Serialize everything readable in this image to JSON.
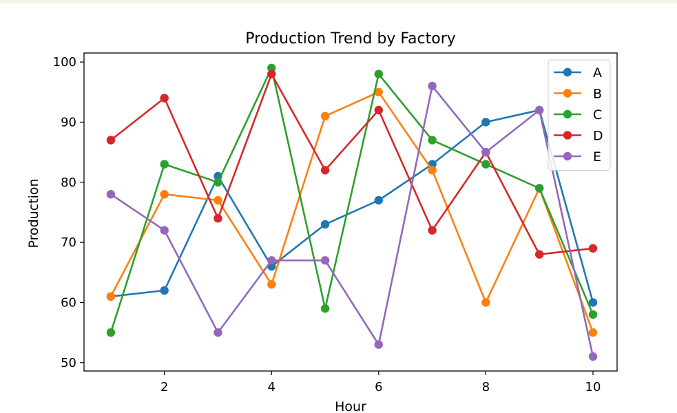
{
  "chart_data": {
    "type": "line",
    "title": "Production Trend by Factory",
    "xlabel": "Hour",
    "ylabel": "Production",
    "x": [
      1,
      2,
      3,
      4,
      5,
      6,
      7,
      8,
      9,
      10
    ],
    "xlim": [
      0.5,
      10.45
    ],
    "ylim": [
      48.6,
      101.5
    ],
    "xticks": [
      2,
      4,
      6,
      8,
      10
    ],
    "yticks": [
      50,
      60,
      70,
      80,
      90,
      100
    ],
    "grid": false,
    "legend_position": "top-right",
    "series": [
      {
        "name": "A",
        "color": "#1f77b4",
        "values": [
          61,
          62,
          81,
          66,
          73,
          77,
          83,
          90,
          92,
          60
        ]
      },
      {
        "name": "B",
        "color": "#ff7f0e",
        "values": [
          61,
          78,
          77,
          63,
          91,
          95,
          82,
          60,
          79,
          55
        ]
      },
      {
        "name": "C",
        "color": "#2ca02c",
        "values": [
          55,
          83,
          80,
          99,
          59,
          98,
          87,
          83,
          79,
          58
        ]
      },
      {
        "name": "D",
        "color": "#d62728",
        "values": [
          87,
          94,
          74,
          98,
          82,
          92,
          72,
          85,
          68,
          69
        ]
      },
      {
        "name": "E",
        "color": "#9467bd",
        "values": [
          78,
          72,
          55,
          67,
          67,
          53,
          96,
          85,
          92,
          51
        ]
      }
    ]
  }
}
